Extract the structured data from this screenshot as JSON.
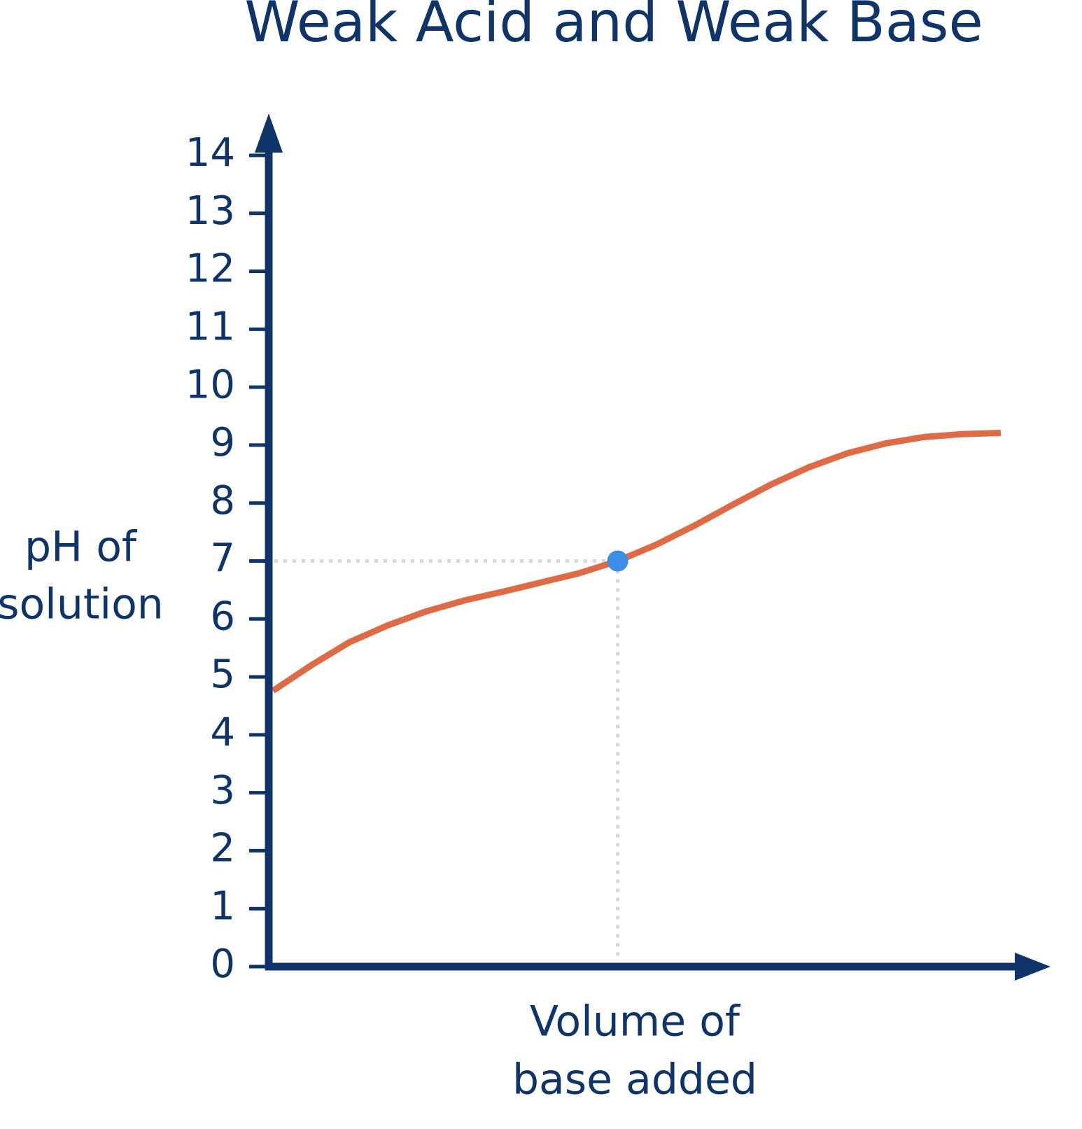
{
  "chart_data": {
    "type": "line",
    "title": "Weak Acid and Weak Base",
    "ylabel": [
      "pH of",
      "solution"
    ],
    "xlabel": [
      "Volume of",
      "base added"
    ],
    "ylim": [
      0,
      14
    ],
    "yticks": [
      0,
      1,
      2,
      3,
      4,
      5,
      6,
      7,
      8,
      9,
      10,
      11,
      12,
      13,
      14
    ],
    "values": [
      4.76,
      5.2,
      5.6,
      5.89,
      6.13,
      6.32,
      6.47,
      6.63,
      6.79,
      7.0,
      7.28,
      7.61,
      7.97,
      8.32,
      8.62,
      8.86,
      9.03,
      9.14,
      9.19,
      9.21
    ],
    "color": "#dd6b45",
    "marker": {
      "index": 9,
      "color": "#3a8ee6"
    },
    "axis_color": "#0f3469"
  }
}
